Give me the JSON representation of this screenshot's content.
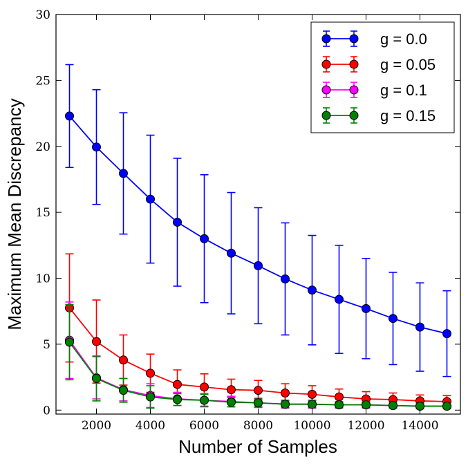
{
  "chart_data": {
    "type": "line",
    "title": "",
    "xlabel": "Number of Samples",
    "ylabel": "Maximum Mean Discrepancy",
    "xlim": [
      500,
      15500
    ],
    "ylim": [
      -0.3,
      30
    ],
    "xticks": [
      2000,
      4000,
      6000,
      8000,
      10000,
      12000,
      14000
    ],
    "yticks": [
      0,
      5,
      10,
      15,
      20,
      25,
      30
    ],
    "grid": false,
    "legend_position": "top-right",
    "x": [
      1000,
      2000,
      3000,
      4000,
      5000,
      6000,
      7000,
      8000,
      9000,
      10000,
      11000,
      12000,
      13000,
      14000,
      15000
    ],
    "series": [
      {
        "name": "g = 0.0",
        "color": "#0000ff",
        "values": [
          22.3,
          19.95,
          17.95,
          16.0,
          14.25,
          13.0,
          11.9,
          10.95,
          9.95,
          9.1,
          8.4,
          7.7,
          6.95,
          6.3,
          5.8
        ],
        "error": [
          3.9,
          4.35,
          4.6,
          4.85,
          4.85,
          4.85,
          4.6,
          4.4,
          4.25,
          4.15,
          4.1,
          3.8,
          3.5,
          3.35,
          3.25
        ]
      },
      {
        "name": "g = 0.05",
        "color": "#ff0000",
        "values": [
          7.75,
          5.2,
          3.8,
          2.8,
          1.95,
          1.75,
          1.55,
          1.5,
          1.3,
          1.2,
          1.0,
          0.85,
          0.8,
          0.7,
          0.65
        ],
        "error": [
          4.1,
          3.15,
          1.9,
          1.45,
          1.1,
          1.0,
          0.8,
          0.75,
          0.7,
          0.65,
          0.6,
          0.55,
          0.5,
          0.45,
          0.45
        ]
      },
      {
        "name": "g = 0.1",
        "color": "#ff00ff",
        "values": [
          5.3,
          2.45,
          1.55,
          1.1,
          0.85,
          0.75,
          0.65,
          0.55,
          0.45,
          0.45,
          0.4,
          0.4,
          0.35,
          0.3,
          0.3
        ],
        "error": [
          2.9,
          1.6,
          0.85,
          0.9,
          0.5,
          0.5,
          0.4,
          0.35,
          0.3,
          0.3,
          0.25,
          0.25,
          0.2,
          0.2,
          0.2
        ]
      },
      {
        "name": "g = 0.15",
        "color": "#008000",
        "values": [
          5.15,
          2.4,
          1.5,
          1.0,
          0.8,
          0.75,
          0.6,
          0.55,
          0.45,
          0.45,
          0.4,
          0.4,
          0.35,
          0.3,
          0.3
        ],
        "error": [
          2.85,
          1.7,
          0.9,
          0.85,
          0.45,
          0.45,
          0.35,
          0.3,
          0.25,
          0.25,
          0.2,
          0.2,
          0.2,
          0.15,
          0.15
        ]
      }
    ]
  }
}
